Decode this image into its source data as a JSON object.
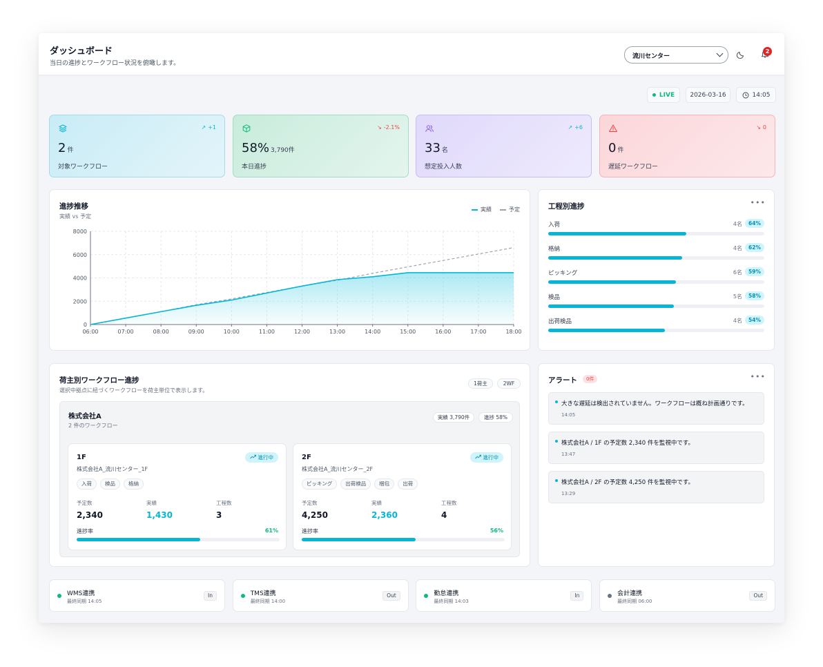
{
  "header": {
    "title": "ダッシュボード",
    "subtitle": "当日の進捗とワークフロー状況を俯瞰します。",
    "center_select": "流川センター",
    "notification_count": "2"
  },
  "status": {
    "live": "LIVE",
    "date": "2026-03-16",
    "time": "14:05"
  },
  "stats": [
    {
      "value": "2",
      "unit": "件",
      "label": "対象ワークフロー",
      "trend": "+1",
      "icon": "layers-icon",
      "color": "#06b6d4"
    },
    {
      "value": "58%",
      "unit": "3,790件",
      "label": "本日進捗",
      "trend": "-2.1%",
      "icon": "box-icon",
      "color": "#10b981"
    },
    {
      "value": "33",
      "unit": "名",
      "label": "想定投入人数",
      "trend": "+6",
      "icon": "users-icon",
      "color": "#8b5cf6"
    },
    {
      "value": "0",
      "unit": "件",
      "label": "遅延ワークフロー",
      "trend": "0",
      "icon": "alert-triangle-icon",
      "color": "#ef4444"
    }
  ],
  "progress_chart": {
    "title": "進捗推移",
    "subtitle": "実績 vs 予定",
    "legend_actual": "実績",
    "legend_plan": "予定"
  },
  "chart_data": {
    "type": "line",
    "title": "進捗推移",
    "x": [
      "06:00",
      "07:00",
      "08:00",
      "09:00",
      "10:00",
      "11:00",
      "12:00",
      "13:00",
      "14:00",
      "15:00",
      "16:00",
      "17:00",
      "18:00"
    ],
    "y_ticks": [
      "0",
      "2000",
      "4000",
      "6000",
      "8000"
    ],
    "ylim": [
      0,
      8000
    ],
    "grid": true,
    "legend": "top-right",
    "series": [
      {
        "name": "実績",
        "values": [
          0,
          550,
          1100,
          1650,
          2100,
          2700,
          3300,
          3850,
          4100,
          4450,
          4450,
          4450,
          4450
        ],
        "color": "#06b6d4",
        "style": "area"
      },
      {
        "name": "予定",
        "values": [
          0,
          550,
          1100,
          1700,
          2200,
          2750,
          3300,
          3800,
          4400,
          4950,
          5500,
          6050,
          6600
        ],
        "color": "#9ca3af",
        "style": "dashed"
      }
    ]
  },
  "process_progress": {
    "title": "工程別進捗",
    "items": [
      {
        "name": "入荷",
        "count": "4名",
        "pct": "64%",
        "fill": 0.64
      },
      {
        "name": "格納",
        "count": "4名",
        "pct": "62%",
        "fill": 0.62
      },
      {
        "name": "ピッキング",
        "count": "6名",
        "pct": "59%",
        "fill": 0.59
      },
      {
        "name": "検品",
        "count": "5名",
        "pct": "58%",
        "fill": 0.58
      },
      {
        "name": "出荷検品",
        "count": "4名",
        "pct": "54%",
        "fill": 0.54
      }
    ]
  },
  "shipper_section": {
    "title": "荷主別ワークフロー進捗",
    "subtitle": "選択中拠点に紐づくワークフローを荷主単位で表示します。",
    "chip_shippers": "1荷主",
    "chip_workflows": "2WF",
    "shipper": {
      "name": "株式会社A",
      "sub": "2 件のワークフロー",
      "actual": "実績 3,790件",
      "progress": "進捗 58%"
    },
    "metric_labels": {
      "planned": "予定数",
      "actual": "実績",
      "steps": "工程数",
      "rate": "進捗率"
    },
    "workflows": [
      {
        "name": "1F",
        "sub": "株式会社A_流川センター_1F",
        "status": "進行中",
        "tags": [
          "入荷",
          "検品",
          "格納"
        ],
        "planned": "2,340",
        "actual": "1,430",
        "steps": "3",
        "rate": "61%",
        "fill": 0.61
      },
      {
        "name": "2F",
        "sub": "株式会社A_流川センター_2F",
        "status": "進行中",
        "tags": [
          "ピッキング",
          "出荷検品",
          "梱包",
          "出荷"
        ],
        "planned": "4,250",
        "actual": "2,360",
        "steps": "4",
        "rate": "56%",
        "fill": 0.56
      }
    ]
  },
  "alerts": {
    "title": "アラート",
    "badge": "0件",
    "items": [
      {
        "message": "大きな遅延は検出されていません。ワークフローは概ね計画通りです。",
        "time": "14:05"
      },
      {
        "message": "株式会社A / 1F の予定数 2,340 件を監視中です。",
        "time": "13:47"
      },
      {
        "message": "株式会社A / 2F の予定数 4,250 件を監視中です。",
        "time": "13:29"
      }
    ]
  },
  "integrations": [
    {
      "name": "WMS連携",
      "sync": "最終同期 14:05",
      "dir": "In",
      "color": "#10b981"
    },
    {
      "name": "TMS連携",
      "sync": "最終同期 14:00",
      "dir": "Out",
      "color": "#10b981"
    },
    {
      "name": "勤怠連携",
      "sync": "最終同期 14:03",
      "dir": "In",
      "color": "#10b981"
    },
    {
      "name": "会計連携",
      "sync": "最終同期 06:00",
      "dir": "Out",
      "color": "#6b7280"
    }
  ]
}
